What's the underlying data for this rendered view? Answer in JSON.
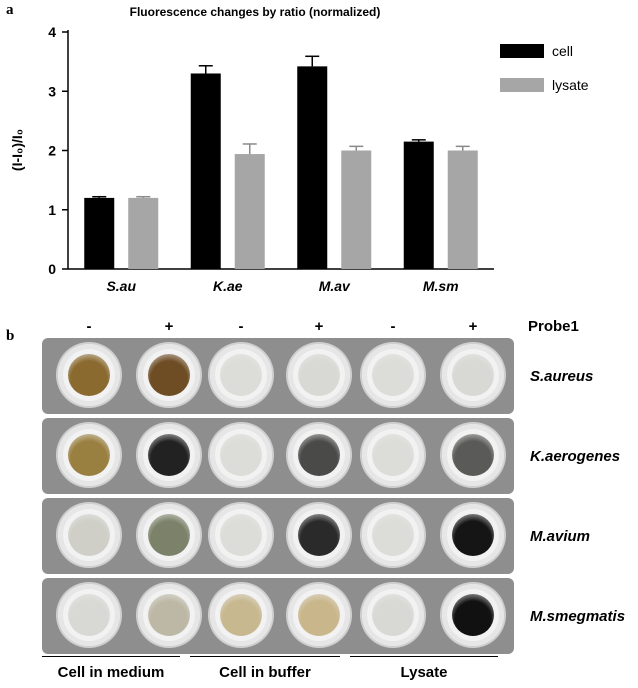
{
  "panel_a": {
    "letter": "a"
  },
  "panel_b": {
    "letter": "b"
  },
  "chart_data": {
    "type": "bar",
    "title": "Fluorescence changes by ratio (normalized)",
    "ylabel": "(I-I₀)/I₀",
    "xlabel": "",
    "categories": [
      "S.au",
      "K.ae",
      "M.av",
      "M.sm"
    ],
    "series": [
      {
        "name": "cell",
        "values": [
          1.2,
          3.3,
          3.42,
          2.15
        ],
        "errors": [
          0.02,
          0.13,
          0.17,
          0.03
        ],
        "color": "#000000"
      },
      {
        "name": "lysate",
        "values": [
          1.2,
          1.94,
          2.0,
          2.0
        ],
        "errors": [
          0.02,
          0.17,
          0.07,
          0.07
        ],
        "color": "#a6a6a6"
      }
    ],
    "ylim": [
      0,
      4
    ],
    "yticks": [
      0,
      1,
      2,
      3,
      4
    ],
    "grid": false,
    "legend": "top-right"
  },
  "probe_label": "Probe1",
  "signs": [
    "-",
    "+",
    "-",
    "+",
    "-",
    "+"
  ],
  "rows": [
    {
      "label": "S.aureus",
      "colors": [
        "#8a6a2e",
        "#6e4c24",
        "#dcdcd8",
        "#d8d8d4",
        "#dcdcd8",
        "#d8d8d4"
      ]
    },
    {
      "label": "K.aerogenes",
      "colors": [
        "#9a8040",
        "#222222",
        "#dcdcd8",
        "#4a4a48",
        "#dcdcd8",
        "#5a5a58"
      ]
    },
    {
      "label": "M.avium",
      "colors": [
        "#cfcfc8",
        "#7c826a",
        "#dcdcd8",
        "#2a2a2a",
        "#dcdcd8",
        "#151515"
      ]
    },
    {
      "label": "M.smegmatis",
      "colors": [
        "#d8d8d4",
        "#bdb8a6",
        "#c8b890",
        "#c9b68a",
        "#d8d8d4",
        "#111111"
      ]
    }
  ],
  "groups": [
    "Cell in medium",
    "Cell in buffer",
    "Lysate"
  ]
}
